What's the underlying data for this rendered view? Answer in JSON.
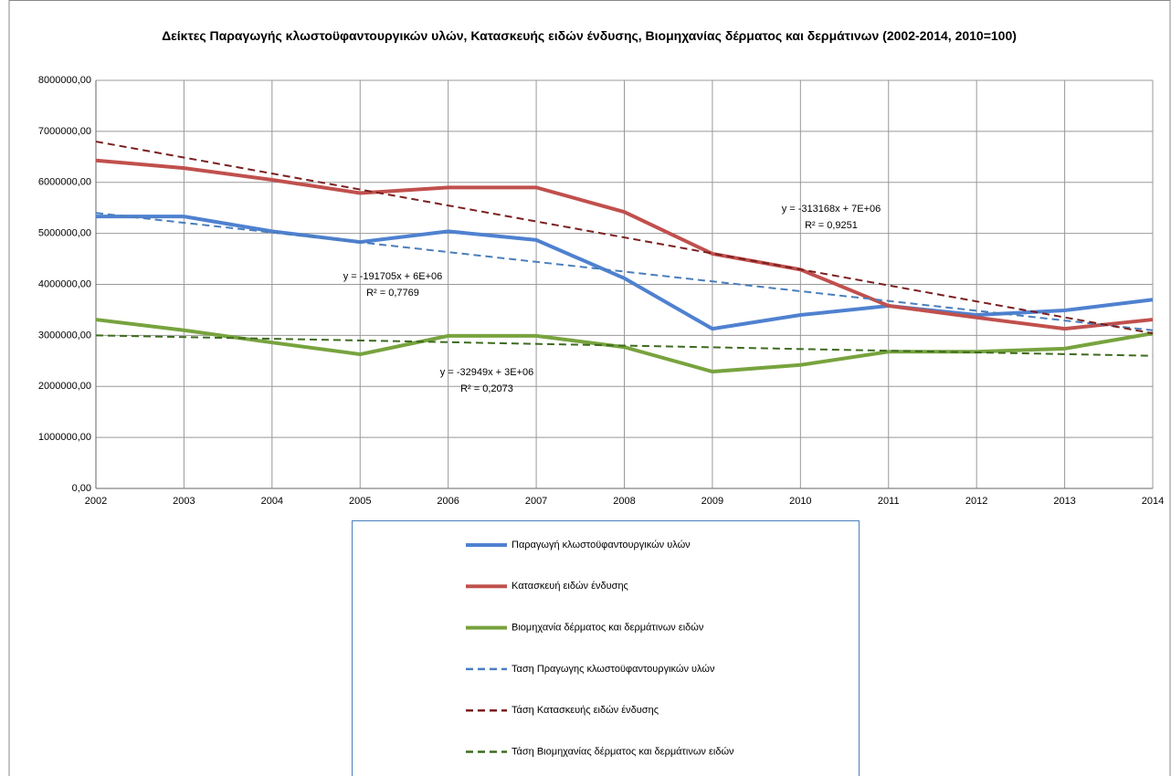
{
  "chart_data": {
    "type": "line",
    "title": "Δείκτες Παραγωγής κλωστοϋφαντουργικών υλών, Κατασκευής ειδών ένδυσης, Βιομηχανίας δέρματος και δερμάτινων (2002-2014, 2010=100)",
    "x": [
      2002,
      2003,
      2004,
      2005,
      2006,
      2007,
      2008,
      2009,
      2010,
      2011,
      2012,
      2013,
      2014
    ],
    "xlim": [
      2002,
      2014
    ],
    "xticks": [
      2002,
      2003,
      2004,
      2005,
      2006,
      2007,
      2008,
      2009,
      2010,
      2011,
      2012,
      2013,
      2014
    ],
    "ylim": [
      0,
      8000000
    ],
    "yticks": [
      {
        "value": 0,
        "label": "0,00"
      },
      {
        "value": 1000000,
        "label": "1000000,00"
      },
      {
        "value": 2000000,
        "label": "2000000,00"
      },
      {
        "value": 3000000,
        "label": "3000000,00"
      },
      {
        "value": 4000000,
        "label": "4000000,00"
      },
      {
        "value": 5000000,
        "label": "5000000,00"
      },
      {
        "value": 6000000,
        "label": "6000000,00"
      },
      {
        "value": 7000000,
        "label": "7000000,00"
      },
      {
        "value": 8000000,
        "label": "8000000,00"
      }
    ],
    "grid": true,
    "series": [
      {
        "name": "Παραγωγή κλωστοϋφαντουργικών υλών",
        "color": "#4f81d0",
        "dashed": false,
        "values": [
          5330000,
          5330000,
          5040000,
          4830000,
          5040000,
          4870000,
          4120000,
          3130000,
          3400000,
          3580000,
          3400000,
          3490000,
          3700000
        ]
      },
      {
        "name": "Κατασκευή ειδών ένδυσης",
        "color": "#c0504d",
        "dashed": false,
        "values": [
          6430000,
          6280000,
          6050000,
          5790000,
          5900000,
          5900000,
          5420000,
          4600000,
          4290000,
          3580000,
          3350000,
          3130000,
          3310000
        ]
      },
      {
        "name": "Βιομηχανία δέρματος και δερμάτινων ειδών",
        "color": "#77a33e",
        "dashed": false,
        "values": [
          3310000,
          3100000,
          2860000,
          2630000,
          2990000,
          2990000,
          2770000,
          2290000,
          2420000,
          2680000,
          2680000,
          2740000,
          3040000
        ]
      },
      {
        "name": "Ταση Πραγωγης κλωστοϋφαντουργικών υλών",
        "color": "#4a7ebb",
        "dashed": true,
        "x": [
          2002,
          2014
        ],
        "values": [
          5400000,
          3100000
        ]
      },
      {
        "name": "Τάση Κατασκευής ειδών ένδυσης",
        "color": "#7a1f1f",
        "dashed": true,
        "x": [
          2002,
          2014
        ],
        "values": [
          6800000,
          3040000
        ]
      },
      {
        "name": "Τάση Βιομηχανίας δέρματος και δερμάτινων ειδών",
        "color": "#3d6b1f",
        "dashed": true,
        "x": [
          2002,
          2014
        ],
        "values": [
          3000000,
          2600000
        ]
      }
    ],
    "annotations": [
      "y = -313168x + 7E+06",
      "R² = 0,9251",
      "y = -191705x + 6E+06",
      "R² = 0,7769",
      "y = -32949x + 3E+06",
      "R² = 0,2073"
    ]
  }
}
